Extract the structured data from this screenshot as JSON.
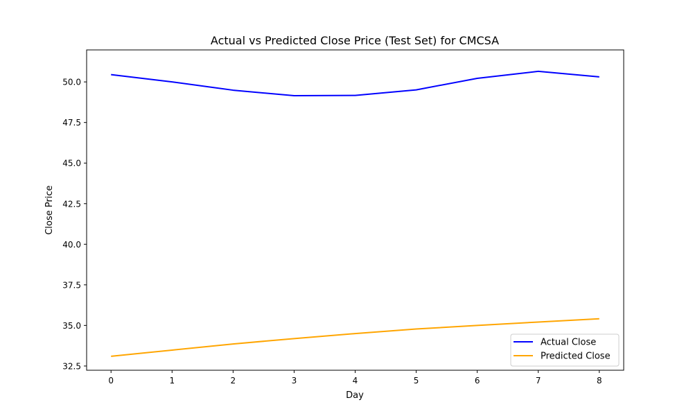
{
  "chart_data": {
    "type": "line",
    "title": "Actual vs Predicted Close Price (Test Set) for CMCSA",
    "xlabel": "Day",
    "ylabel": "Close Price",
    "x": [
      0,
      1,
      2,
      3,
      4,
      5,
      6,
      7,
      8
    ],
    "xlim": [
      -0.4,
      8.4
    ],
    "ylim": [
      32.24,
      51.97
    ],
    "xticks": [
      0,
      1,
      2,
      3,
      4,
      5,
      6,
      7,
      8
    ],
    "xtick_labels": [
      "0",
      "1",
      "2",
      "3",
      "4",
      "5",
      "6",
      "7",
      "8"
    ],
    "yticks": [
      32.5,
      35.0,
      37.5,
      40.0,
      42.5,
      45.0,
      47.5,
      50.0
    ],
    "ytick_labels": [
      "32.5",
      "35.0",
      "37.5",
      "40.0",
      "42.5",
      "45.0",
      "47.5",
      "50.0"
    ],
    "grid": false,
    "legend_position": "lower-right",
    "series": [
      {
        "name": "Actual Close",
        "color": "#0000ff",
        "values": [
          50.45,
          50.0,
          49.49,
          49.15,
          49.17,
          49.51,
          50.22,
          50.65,
          50.31
        ]
      },
      {
        "name": "Predicted Close",
        "color": "#ffa500",
        "values": [
          33.1,
          33.48,
          33.86,
          34.19,
          34.5,
          34.78,
          35.0,
          35.21,
          35.41
        ]
      }
    ]
  }
}
